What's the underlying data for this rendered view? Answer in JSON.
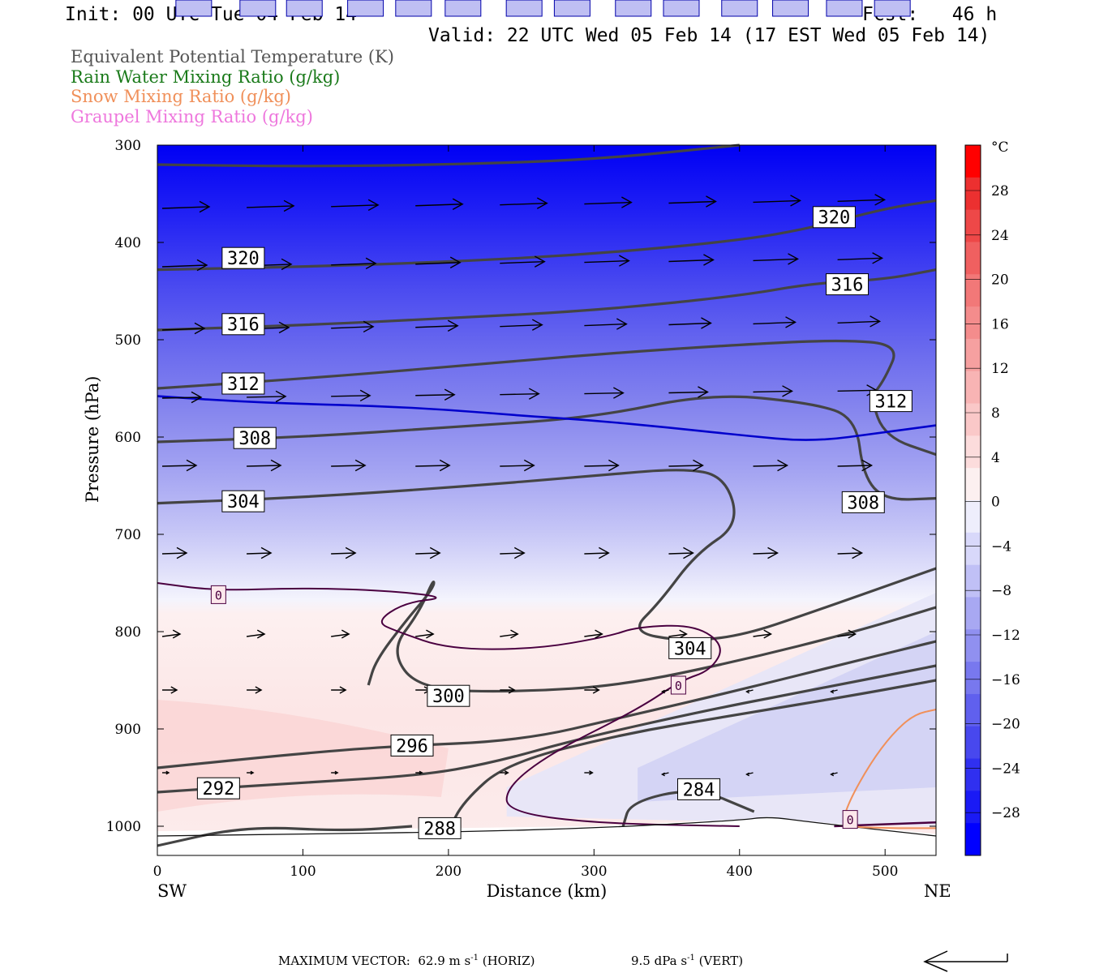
{
  "header": {
    "init": "Init: 00 UTC Tue 04 Feb 14",
    "fcst": "Fcst:   46 h",
    "valid": "Valid: 22 UTC Wed 05 Feb 14 (17 EST Wed 05 Feb 14)"
  },
  "legend": [
    {
      "label": "Equivalent Potential Temperature (K)",
      "color": "#555555"
    },
    {
      "label": "Rain Water Mixing Ratio (g/kg)",
      "color": "#1a7a1a"
    },
    {
      "label": "Snow Mixing Ratio (g/kg)",
      "color": "#f0905a"
    },
    {
      "label": "Graupel Mixing Ratio (g/kg)",
      "color": "#ee77dd"
    }
  ],
  "footer": {
    "max_vector": "MAXIMUM VECTOR:  62.9 m s",
    "horiz": " (HORIZ)",
    "vert_val": "9.5 dPa s",
    "vert": " (VERT)",
    "sup": "-1"
  },
  "chart_data": {
    "type": "cross-section contour",
    "xlabel": "Distance (km)",
    "ylabel": "Pressure (hPa)",
    "x_left_label": "SW",
    "x_right_label": "NE",
    "xlim": [
      0,
      535
    ],
    "ylim": [
      1030,
      300
    ],
    "x_ticks": [
      0,
      100,
      200,
      300,
      400,
      500
    ],
    "y_ticks": [
      300,
      400,
      500,
      600,
      700,
      800,
      900,
      1000
    ],
    "colorbar": {
      "unit": "°C",
      "ticks": [
        28,
        24,
        20,
        16,
        12,
        8,
        4,
        0,
        -4,
        -8,
        -12,
        -16,
        -20,
        -24,
        -28
      ],
      "colors": [
        "#0000ff",
        "#1a1af5",
        "#3030f0",
        "#4848ee",
        "#6060ee",
        "#7878ee",
        "#9090f0",
        "#a8a8f2",
        "#c0c0f6",
        "#d8d8fa",
        "#eeeefc",
        "#fcf0f0",
        "#fcdcdc",
        "#fac8c8",
        "#f8b4b4",
        "#f6a0a0",
        "#f48c8c",
        "#f27878",
        "#f06060",
        "#ee4848",
        "#ec3030",
        "#ff0000"
      ]
    },
    "theta_e_contours": [
      {
        "value": 320,
        "label_at": [
          [
            59,
            416
          ],
          [
            465,
            374
          ]
        ]
      },
      {
        "value": 316,
        "label_at": [
          [
            59,
            484
          ],
          [
            474,
            443
          ]
        ]
      },
      {
        "value": 312,
        "label_at": [
          [
            59,
            545
          ],
          [
            504,
            563
          ]
        ]
      },
      {
        "value": 308,
        "label_at": [
          [
            67,
            601
          ],
          [
            485,
            667
          ]
        ]
      },
      {
        "value": 304,
        "label_at": [
          [
            59,
            666
          ],
          [
            366,
            817
          ]
        ]
      },
      {
        "value": 300,
        "label_at": [
          [
            200,
            866
          ]
        ]
      },
      {
        "value": 296,
        "label_at": [
          [
            175,
            917
          ]
        ]
      },
      {
        "value": 292,
        "label_at": [
          [
            42,
            961
          ]
        ]
      },
      {
        "value": 288,
        "label_at": [
          [
            194,
            1002
          ]
        ]
      },
      {
        "value": 284,
        "label_at": [
          [
            372,
            962
          ]
        ]
      }
    ],
    "temperature_contours": [
      {
        "value": -10,
        "color": "#0000cc",
        "labels": [
          25,
          69,
          101,
          143,
          176,
          210,
          252,
          285,
          327,
          360,
          400,
          435,
          472,
          505
        ]
      },
      {
        "value": 0,
        "color": "#550044",
        "labels": [
          42,
          358,
          476
        ]
      }
    ],
    "wind_rows_hPa": [
      365,
      425,
      490,
      560,
      630,
      720,
      805,
      860,
      945
    ]
  }
}
